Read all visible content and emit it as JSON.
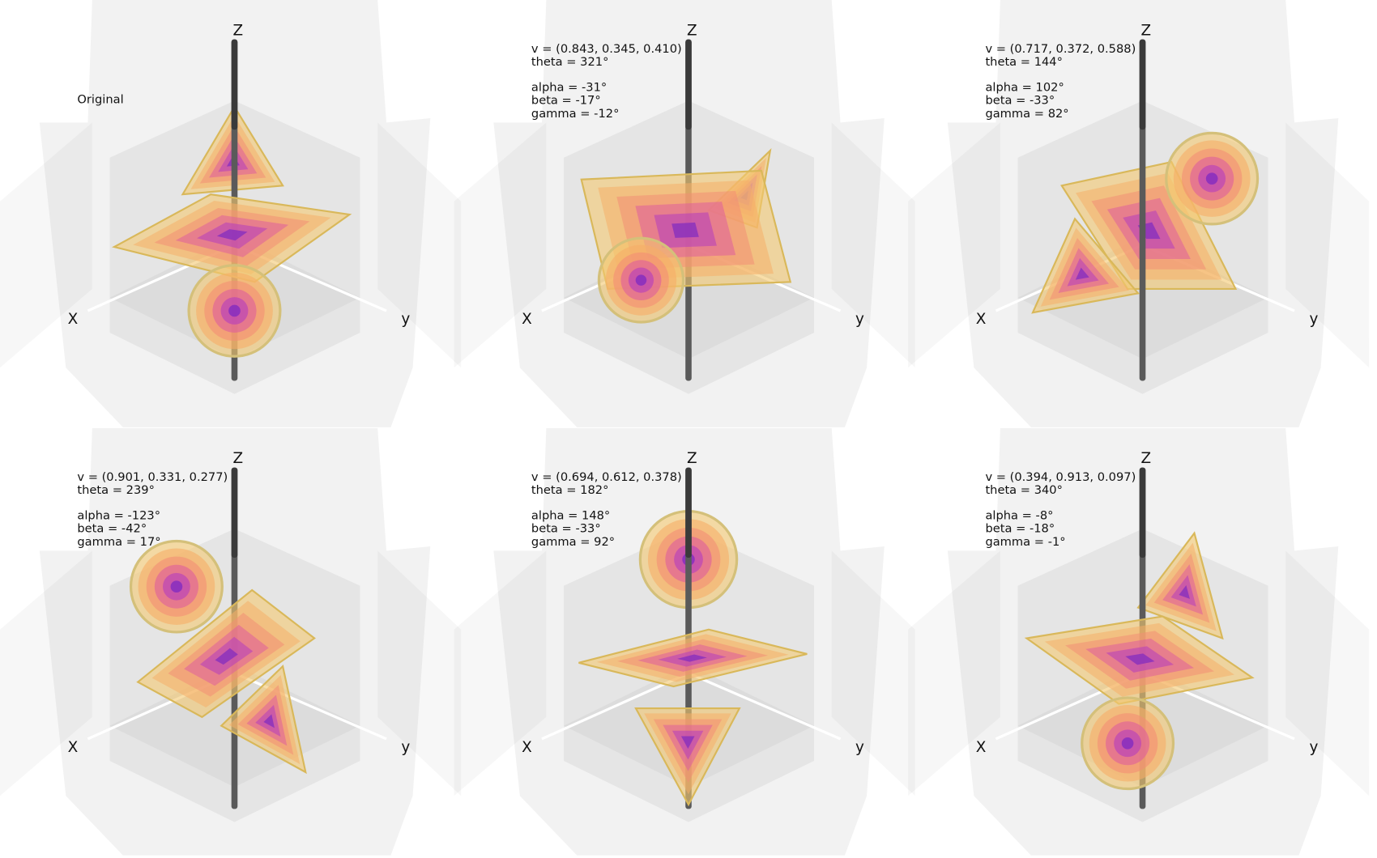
{
  "axes": {
    "z": "Z",
    "x": "X",
    "y": "y"
  },
  "panels": [
    {
      "lines": [
        "Original"
      ]
    },
    {
      "lines": [
        "v = (0.843, 0.345, 0.410)",
        "theta = 321°",
        "alpha = -31°",
        "beta = -17°",
        "gamma = -12°"
      ]
    },
    {
      "lines": [
        "v = (0.717, 0.372, 0.588)",
        "theta = 144°",
        "alpha = 102°",
        "beta = -33°",
        "gamma = 82°"
      ]
    },
    {
      "lines": [
        "v = (0.901, 0.331, 0.277)",
        "theta = 239°",
        "alpha = -123°",
        "beta = -42°",
        "gamma = 17°"
      ]
    },
    {
      "lines": [
        "v = (0.694, 0.612, 0.378)",
        "theta = 182°",
        "alpha = 148°",
        "beta = -33°",
        "gamma = 92°"
      ]
    },
    {
      "lines": [
        "v = (0.394, 0.913, 0.097)",
        "theta = 340°",
        "alpha = -8°",
        "beta = -18°",
        "gamma = -1°"
      ]
    }
  ]
}
